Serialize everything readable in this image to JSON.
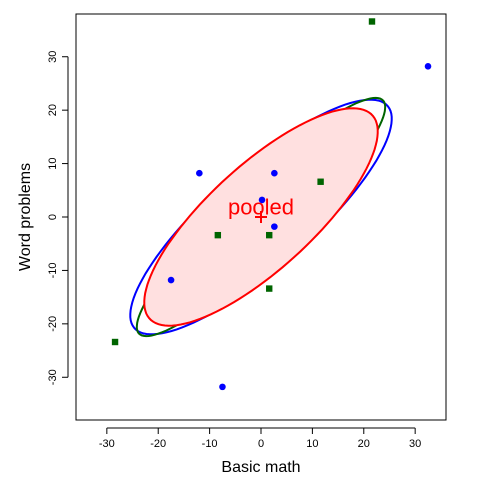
{
  "chart_data": {
    "type": "scatter",
    "title": "",
    "xlabel": "Basic math",
    "ylabel": "Word problems",
    "xlim": [
      -36,
      36
    ],
    "ylim": [
      -38,
      38
    ],
    "xticks": [
      -30,
      -20,
      -10,
      0,
      10,
      20,
      30
    ],
    "yticks": [
      -30,
      -20,
      -10,
      0,
      10,
      20,
      30
    ],
    "grid": false,
    "legend": "none",
    "series": [
      {
        "marker": "circle",
        "color": "#0000ff",
        "points": [
          {
            "x": -12,
            "y": 8.2
          },
          {
            "x": 0.2,
            "y": 3.2
          },
          {
            "x": 2.6,
            "y": 8.2
          },
          {
            "x": 2.6,
            "y": -1.8
          },
          {
            "x": -17.5,
            "y": -11.8
          },
          {
            "x": -7.5,
            "y": -31.8
          },
          {
            "x": 32.5,
            "y": 28.2
          }
        ]
      },
      {
        "marker": "square",
        "color": "#006400",
        "points": [
          {
            "x": 21.6,
            "y": 36.6
          },
          {
            "x": 11.6,
            "y": 6.6
          },
          {
            "x": -8.4,
            "y": -3.4
          },
          {
            "x": 1.6,
            "y": -3.4
          },
          {
            "x": 1.6,
            "y": -13.4
          },
          {
            "x": -28.4,
            "y": -23.4
          }
        ]
      }
    ],
    "ellipses": [
      {
        "color": "#0000ff",
        "center": [
          0.0,
          0.0
        ],
        "half_major": 45.6,
        "half_minor": 13.4,
        "angle_deg": 40,
        "fill": "none"
      },
      {
        "color": "#006400",
        "center": [
          0.0,
          0.0
        ],
        "half_major": 45.6,
        "half_minor": 9.1,
        "angle_deg": 42.5,
        "fill": "none"
      },
      {
        "color": "#ff0000",
        "center": [
          0.0,
          0.0
        ],
        "half_major": 40.8,
        "half_minor": 14.0,
        "angle_deg": 41,
        "fill": "#ffe0e0"
      }
    ],
    "center_marker": {
      "x": 0,
      "y": 0,
      "symbol": "+",
      "color": "#ff0000"
    },
    "annotations": [
      {
        "text": "pooled",
        "x": 0,
        "y": 2,
        "color": "#ff0000"
      }
    ]
  }
}
